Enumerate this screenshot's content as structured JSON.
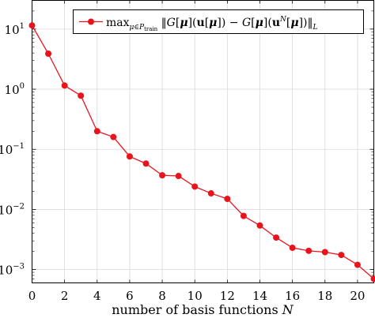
{
  "chart_data": {
    "type": "line",
    "xlabel": "number of basis functions N",
    "ylabel": "",
    "xlim": [
      0,
      21
    ],
    "ylim": [
      0.0006,
      30
    ],
    "yscale": "log",
    "grid": true,
    "legend_position": "top-right",
    "x_ticks": [
      0,
      2,
      4,
      6,
      8,
      10,
      12,
      14,
      16,
      18,
      20
    ],
    "y_ticks": [
      {
        "value": 0.001,
        "base": "10",
        "exp": "−3"
      },
      {
        "value": 0.01,
        "base": "10",
        "exp": "−2"
      },
      {
        "value": 0.1,
        "base": "10",
        "exp": "−1"
      },
      {
        "value": 1,
        "base": "10",
        "exp": "0"
      },
      {
        "value": 10,
        "base": "10",
        "exp": "1"
      }
    ],
    "series": [
      {
        "name": "max_{μ∈P_train} ‖G[μ](u[μ]) − G[μ](u^N[μ])‖_L",
        "color": "#e8141c",
        "x": [
          0,
          1,
          2,
          3,
          4,
          5,
          6,
          7,
          8,
          9,
          10,
          11,
          12,
          13,
          14,
          15,
          16,
          17,
          18,
          19,
          20,
          21
        ],
        "y": [
          11.5,
          3.9,
          1.15,
          0.78,
          0.2,
          0.16,
          0.076,
          0.058,
          0.037,
          0.036,
          0.024,
          0.0185,
          0.015,
          0.0078,
          0.0054,
          0.0034,
          0.0023,
          0.00205,
          0.00195,
          0.00175,
          0.0012,
          0.0007
        ]
      }
    ]
  }
}
